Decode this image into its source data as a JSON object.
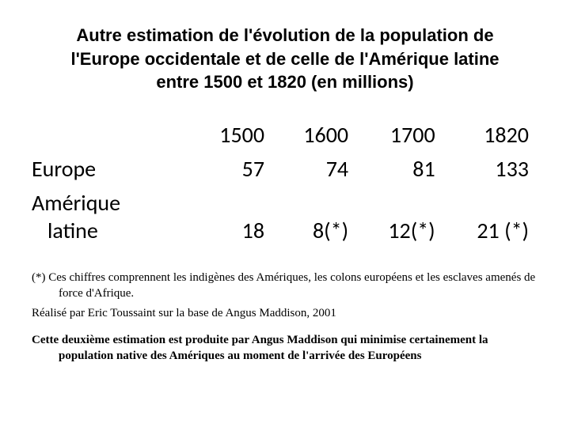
{
  "title": "Autre estimation de l'évolution de la population de l'Europe occidentale et de celle de l'Amérique latine entre 1500 et 1820 (en millions)",
  "table": {
    "type": "table",
    "columns": [
      "1500",
      "1600",
      "1700",
      "1820"
    ],
    "rows": [
      {
        "label_line1": "Europe",
        "label_line2": "",
        "values": [
          "57",
          "74",
          "81",
          "133"
        ]
      },
      {
        "label_line1": "Amérique",
        "label_line2": "latine",
        "values": [
          "18",
          "8(*)",
          "12(*)",
          "21 (*)"
        ]
      }
    ],
    "header_fontsize": 28,
    "cell_fontsize": 28,
    "text_color": "#000000",
    "background_color": "#ffffff"
  },
  "footnote1": "(*) Ces chiffres comprennent les indigènes des Amériques, les colons européens et les esclaves amenés de force d'Afrique.",
  "footnote2": "Réalisé par Eric Toussaint sur la base de Angus Maddison, 2001",
  "closing": "Cette deuxième estimation est produite par Angus Maddison qui minimise certainement la population native des Amériques au moment de l'arrivée des Européens"
}
